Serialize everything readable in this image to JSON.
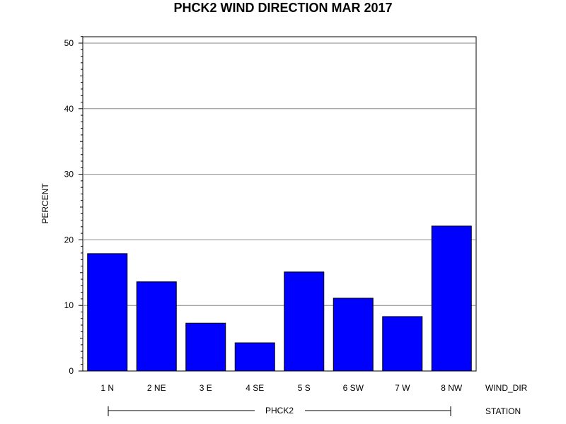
{
  "chart_data": {
    "type": "bar",
    "title": "PHCK2 WIND DIRECTION MAR 2017",
    "ylabel": "PERCENT",
    "xlabel": "WIND_DIR",
    "group_axis_label": "STATION",
    "group_label": "PHCK2",
    "categories": [
      "1 N",
      "2 NE",
      "3 E",
      "4 SE",
      "5 S",
      "6 SW",
      "7 W",
      "8 NW"
    ],
    "values": [
      17.9,
      13.6,
      7.3,
      4.3,
      15.1,
      11.1,
      8.3,
      22.1
    ],
    "ylim": [
      0,
      51
    ],
    "yticks": [
      0,
      10,
      20,
      30,
      40,
      50
    ],
    "grid": true,
    "bar_color": "#0000ff"
  }
}
